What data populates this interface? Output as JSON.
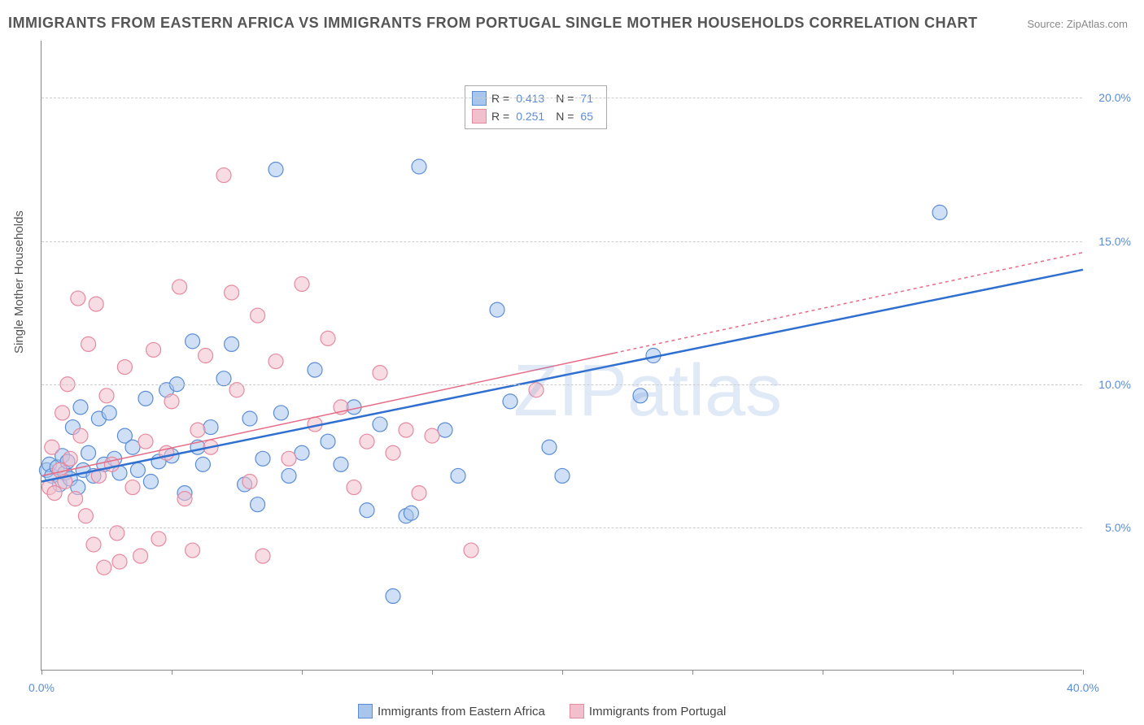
{
  "title": "IMMIGRANTS FROM EASTERN AFRICA VS IMMIGRANTS FROM PORTUGAL SINGLE MOTHER HOUSEHOLDS CORRELATION CHART",
  "source": "Source: ZipAtlas.com",
  "y_axis_label": "Single Mother Households",
  "watermark": "ZIPatlas",
  "chart": {
    "type": "scatter",
    "xlim": [
      0,
      40
    ],
    "ylim": [
      0,
      22
    ],
    "x_ticks": [
      0,
      5,
      10,
      15,
      20,
      25,
      30,
      35,
      40
    ],
    "x_tick_labels": {
      "0": "0.0%",
      "40": "40.0%"
    },
    "y_ticks": [
      5,
      10,
      15,
      20
    ],
    "y_tick_labels": {
      "5": "5.0%",
      "10": "10.0%",
      "15": "15.0%",
      "20": "20.0%"
    },
    "background_color": "#ffffff",
    "grid_color": "#cccccc",
    "axis_color": "#888888",
    "tick_label_color": "#5b8dd6",
    "marker_radius": 9,
    "marker_opacity": 0.55,
    "marker_stroke_width": 1.2
  },
  "series": [
    {
      "name": "Immigrants from Eastern Africa",
      "color_fill": "#a8c5ec",
      "color_stroke": "#5b8dd6",
      "R": "0.413",
      "N": "71",
      "trend": {
        "x1": 0,
        "y1": 6.6,
        "x2": 40,
        "y2": 14.0,
        "color": "#2f6fd0",
        "width": 2.5,
        "dash": "none"
      },
      "points": [
        [
          0.2,
          7.0
        ],
        [
          0.3,
          7.2
        ],
        [
          0.4,
          6.8
        ],
        [
          0.6,
          7.1
        ],
        [
          0.7,
          6.5
        ],
        [
          0.8,
          7.5
        ],
        [
          0.9,
          6.9
        ],
        [
          1.0,
          7.3
        ],
        [
          1.1,
          6.7
        ],
        [
          1.2,
          8.5
        ],
        [
          1.4,
          6.4
        ],
        [
          1.5,
          9.2
        ],
        [
          1.6,
          7.0
        ],
        [
          1.8,
          7.6
        ],
        [
          2.0,
          6.8
        ],
        [
          2.2,
          8.8
        ],
        [
          2.4,
          7.2
        ],
        [
          2.6,
          9.0
        ],
        [
          2.8,
          7.4
        ],
        [
          3.0,
          6.9
        ],
        [
          3.2,
          8.2
        ],
        [
          3.5,
          7.8
        ],
        [
          3.7,
          7.0
        ],
        [
          4.0,
          9.5
        ],
        [
          4.2,
          6.6
        ],
        [
          4.5,
          7.3
        ],
        [
          4.8,
          9.8
        ],
        [
          5.0,
          7.5
        ],
        [
          5.2,
          10.0
        ],
        [
          5.5,
          6.2
        ],
        [
          5.8,
          11.5
        ],
        [
          6.0,
          7.8
        ],
        [
          6.2,
          7.2
        ],
        [
          6.5,
          8.5
        ],
        [
          7.0,
          10.2
        ],
        [
          7.3,
          11.4
        ],
        [
          7.8,
          6.5
        ],
        [
          8.0,
          8.8
        ],
        [
          8.3,
          5.8
        ],
        [
          8.5,
          7.4
        ],
        [
          9.0,
          17.5
        ],
        [
          9.2,
          9.0
        ],
        [
          9.5,
          6.8
        ],
        [
          10.0,
          7.6
        ],
        [
          10.5,
          10.5
        ],
        [
          11.0,
          8.0
        ],
        [
          11.5,
          7.2
        ],
        [
          12.0,
          9.2
        ],
        [
          12.5,
          5.6
        ],
        [
          13.0,
          8.6
        ],
        [
          13.5,
          2.6
        ],
        [
          14.0,
          5.4
        ],
        [
          14.2,
          5.5
        ],
        [
          14.5,
          17.6
        ],
        [
          15.5,
          8.4
        ],
        [
          16.0,
          6.8
        ],
        [
          17.5,
          12.6
        ],
        [
          18.0,
          9.4
        ],
        [
          19.5,
          7.8
        ],
        [
          20.0,
          6.8
        ],
        [
          23.0,
          9.6
        ],
        [
          23.5,
          11.0
        ],
        [
          34.5,
          16.0
        ]
      ]
    },
    {
      "name": "Immigrants from Portugal",
      "color_fill": "#f2c0cc",
      "color_stroke": "#e68aa0",
      "R": "0.251",
      "N": "65",
      "trend": {
        "x1": 0,
        "y1": 6.8,
        "x2": 40,
        "y2": 14.6,
        "color": "#e56b87",
        "width": 1.5,
        "dash": "4 4",
        "solid_until": 22
      },
      "points": [
        [
          0.3,
          6.4
        ],
        [
          0.4,
          7.8
        ],
        [
          0.5,
          6.2
        ],
        [
          0.7,
          7.0
        ],
        [
          0.8,
          9.0
        ],
        [
          0.9,
          6.6
        ],
        [
          1.0,
          10.0
        ],
        [
          1.1,
          7.4
        ],
        [
          1.3,
          6.0
        ],
        [
          1.4,
          13.0
        ],
        [
          1.5,
          8.2
        ],
        [
          1.7,
          5.4
        ],
        [
          1.8,
          11.4
        ],
        [
          2.0,
          4.4
        ],
        [
          2.1,
          12.8
        ],
        [
          2.2,
          6.8
        ],
        [
          2.4,
          3.6
        ],
        [
          2.5,
          9.6
        ],
        [
          2.7,
          7.2
        ],
        [
          2.9,
          4.8
        ],
        [
          3.0,
          3.8
        ],
        [
          3.2,
          10.6
        ],
        [
          3.5,
          6.4
        ],
        [
          3.8,
          4.0
        ],
        [
          4.0,
          8.0
        ],
        [
          4.3,
          11.2
        ],
        [
          4.5,
          4.6
        ],
        [
          4.8,
          7.6
        ],
        [
          5.0,
          9.4
        ],
        [
          5.3,
          13.4
        ],
        [
          5.5,
          6.0
        ],
        [
          5.8,
          4.2
        ],
        [
          6.0,
          8.4
        ],
        [
          6.3,
          11.0
        ],
        [
          6.5,
          7.8
        ],
        [
          7.0,
          17.3
        ],
        [
          7.3,
          13.2
        ],
        [
          7.5,
          9.8
        ],
        [
          8.0,
          6.6
        ],
        [
          8.3,
          12.4
        ],
        [
          8.5,
          4.0
        ],
        [
          9.0,
          10.8
        ],
        [
          9.5,
          7.4
        ],
        [
          10.0,
          13.5
        ],
        [
          10.5,
          8.6
        ],
        [
          11.0,
          11.6
        ],
        [
          11.5,
          9.2
        ],
        [
          12.0,
          6.4
        ],
        [
          12.5,
          8.0
        ],
        [
          13.0,
          10.4
        ],
        [
          13.5,
          7.6
        ],
        [
          14.0,
          8.4
        ],
        [
          14.5,
          6.2
        ],
        [
          15.0,
          8.2
        ],
        [
          16.5,
          4.2
        ],
        [
          19.0,
          9.8
        ]
      ]
    }
  ],
  "legend_bottom": [
    {
      "label": "Immigrants from Eastern Africa",
      "fill": "#a8c5ec",
      "stroke": "#5b8dd6"
    },
    {
      "label": "Immigrants from Portugal",
      "fill": "#f2c0cc",
      "stroke": "#e68aa0"
    }
  ]
}
